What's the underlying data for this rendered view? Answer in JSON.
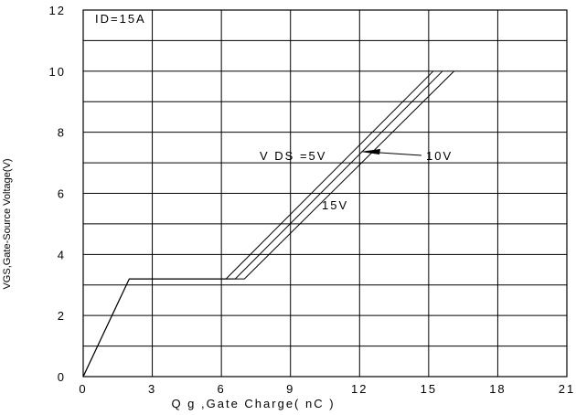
{
  "chart_data": {
    "type": "line",
    "xlabel": "Q g ,Gate Charge( nC )",
    "ylabel": "VGS,Gate-Source Voltage(V)",
    "xlim": [
      0,
      21
    ],
    "ylim": [
      0,
      12
    ],
    "x_ticks": [
      "0",
      "3",
      "6",
      "9",
      "12",
      "15",
      "18",
      "21"
    ],
    "y_ticks": [
      "0",
      "2",
      "4",
      "6",
      "8",
      "10",
      "12"
    ],
    "grid": true,
    "annotations": {
      "condition": "ID=15A",
      "vds_label": "V DS =5V",
      "label_10v": "10V",
      "label_15v": "15V"
    },
    "series": [
      {
        "name": "5V",
        "x": [
          0,
          2.0,
          6.2,
          15.2
        ],
        "y": [
          0,
          3.2,
          3.2,
          10
        ]
      },
      {
        "name": "10V",
        "x": [
          0,
          2.0,
          6.6,
          15.6
        ],
        "y": [
          0,
          3.2,
          3.2,
          10
        ]
      },
      {
        "name": "15V",
        "x": [
          0,
          2.0,
          7.0,
          16.1
        ],
        "y": [
          0,
          3.2,
          3.2,
          10
        ]
      }
    ]
  }
}
